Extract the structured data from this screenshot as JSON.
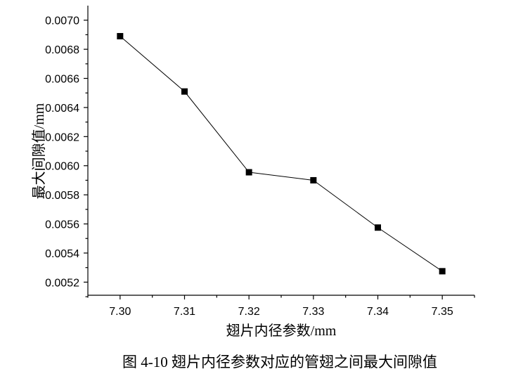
{
  "chart_data": {
    "type": "line",
    "title": "",
    "xlabel": "翅片内径参数/mm",
    "ylabel": "最大间隙值/mm",
    "caption": "图 4-10  翅片内径参数对应的管翅之间最大间隙值",
    "x": [
      7.3,
      7.31,
      7.32,
      7.33,
      7.34,
      7.35
    ],
    "x_ticks": [
      "7.30",
      "7.31",
      "7.32",
      "7.33",
      "7.34",
      "7.35"
    ],
    "y_ticks": [
      "0.0052",
      "0.0054",
      "0.0056",
      "0.0058",
      "0.0060",
      "0.0062",
      "0.0064",
      "0.0066",
      "0.0068",
      "0.0070"
    ],
    "xlim": [
      7.295,
      7.355
    ],
    "ylim": [
      0.00511,
      0.0071
    ],
    "series": [
      {
        "values": [
          0.00689,
          0.00651,
          0.005955,
          0.0059,
          0.005575,
          0.005275
        ]
      }
    ],
    "marker": "square",
    "grid": false,
    "legend": "none",
    "colors": {
      "line": "#000000",
      "marker": "#000000",
      "axis": "#000000"
    }
  }
}
